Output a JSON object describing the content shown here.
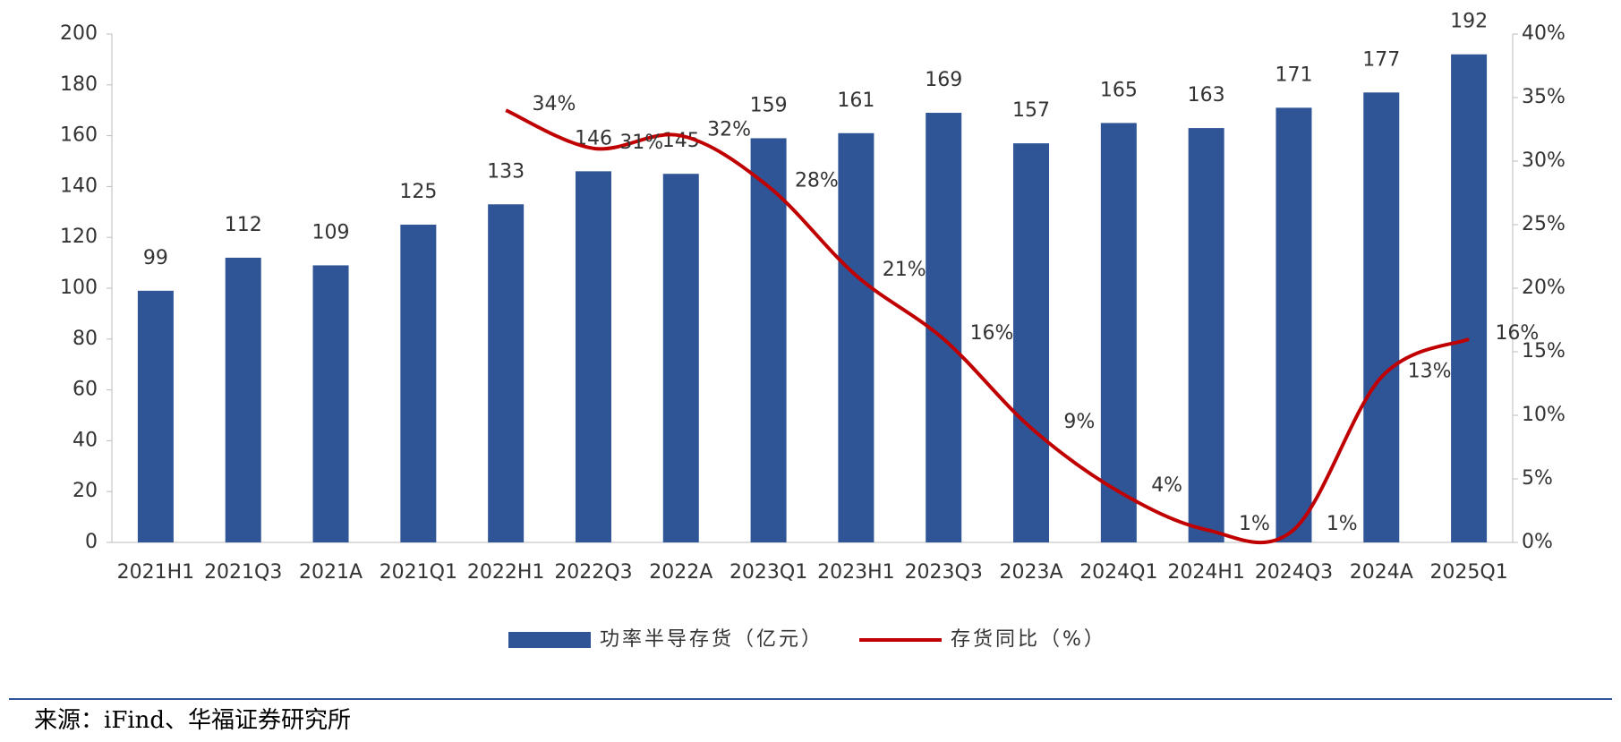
{
  "chart_data": {
    "type": "bar_line",
    "categories": [
      "2021H1",
      "2021Q3",
      "2021A",
      "2021Q1",
      "2022H1",
      "2022Q3",
      "2022A",
      "2023Q1",
      "2023H1",
      "2023Q3",
      "2023A",
      "2024Q1",
      "2024H1",
      "2024Q3",
      "2024A",
      "2025Q1"
    ],
    "series": [
      {
        "name": "功率半导存货（亿元）",
        "color": "#2f5597",
        "type": "bar",
        "values": [
          99,
          112,
          109,
          125,
          133,
          146,
          145,
          159,
          161,
          169,
          157,
          165,
          163,
          171,
          177,
          192
        ]
      },
      {
        "name": "存货同比（%）",
        "color": "#c00000",
        "type": "line",
        "axis": "y2",
        "values": [
          null,
          null,
          null,
          null,
          34,
          31,
          32,
          28,
          21,
          16,
          9,
          4,
          1,
          1,
          13,
          16
        ],
        "value_labels": [
          null,
          null,
          null,
          null,
          "34%",
          "31%",
          "32%",
          "28%",
          "21%",
          "16%",
          "9%",
          "4%",
          "1%",
          "1%",
          "13%",
          "16%"
        ]
      }
    ],
    "ylim": [
      0,
      200
    ],
    "yticks": [
      0,
      20,
      40,
      60,
      80,
      100,
      120,
      140,
      160,
      180,
      200
    ],
    "y2lim": [
      0,
      40
    ],
    "y2ticks": [
      {
        "value": 0,
        "label": "0%"
      },
      {
        "value": 5,
        "label": "5%"
      },
      {
        "value": 10,
        "label": "10%"
      },
      {
        "value": 15,
        "label": "15%"
      },
      {
        "value": 20,
        "label": "20%"
      },
      {
        "value": 25,
        "label": "25%"
      },
      {
        "value": 30,
        "label": "30%"
      },
      {
        "value": 35,
        "label": "35%"
      },
      {
        "value": 40,
        "label": "40%"
      }
    ],
    "legend": "bottom",
    "source": "来源：iFind、华福证券研究所"
  }
}
